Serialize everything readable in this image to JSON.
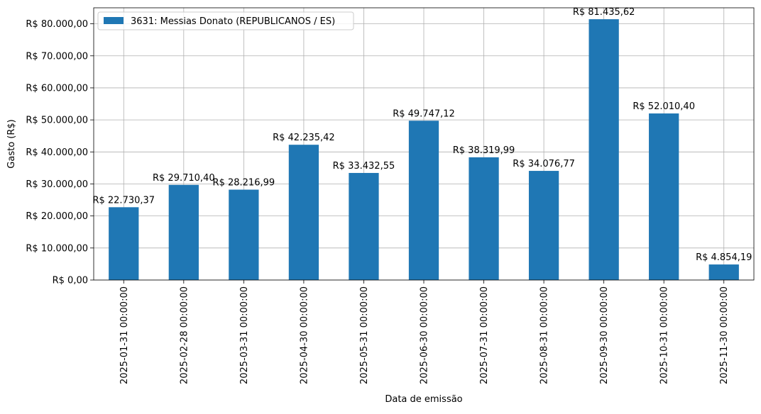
{
  "chart_data": {
    "type": "bar",
    "title": "",
    "xlabel": "Data de emissão",
    "ylabel": "Gasto (R$)",
    "ylim": [
      0,
      85000
    ],
    "yticks": [
      0,
      10000,
      20000,
      30000,
      40000,
      50000,
      60000,
      70000,
      80000
    ],
    "ytick_labels": [
      "R$ 0,00",
      "R$ 10.000,00",
      "R$ 20.000,00",
      "R$ 30.000,00",
      "R$ 40.000,00",
      "R$ 50.000,00",
      "R$ 60.000,00",
      "R$ 70.000,00",
      "R$ 80.000,00"
    ],
    "grid": true,
    "legend_position": "top-left",
    "categories": [
      "2025-01-31 00:00:00",
      "2025-02-28 00:00:00",
      "2025-03-31 00:00:00",
      "2025-04-30 00:00:00",
      "2025-05-31 00:00:00",
      "2025-06-30 00:00:00",
      "2025-07-31 00:00:00",
      "2025-08-31 00:00:00",
      "2025-09-30 00:00:00",
      "2025-10-31 00:00:00",
      "2025-11-30 00:00:00"
    ],
    "series": [
      {
        "name": "3631: Messias Donato (REPUBLICANOS / ES)",
        "color": "#1f77b4",
        "values": [
          22730.37,
          29710.4,
          28216.99,
          42235.42,
          33432.55,
          49747.12,
          38319.99,
          34076.77,
          81435.62,
          52010.4,
          4854.19
        ],
        "labels": [
          "R$ 22.730,37",
          "R$ 29.710,40",
          "R$ 28.216,99",
          "R$ 42.235,42",
          "R$ 33.432,55",
          "R$ 49.747,12",
          "R$ 38.319,99",
          "R$ 34.076,77",
          "R$ 81.435,62",
          "R$ 52.010,40",
          "R$ 4.854,19"
        ]
      }
    ],
    "colors": {
      "grid": "#b0b0b0",
      "axis": "#000000",
      "background": "#ffffff"
    }
  }
}
